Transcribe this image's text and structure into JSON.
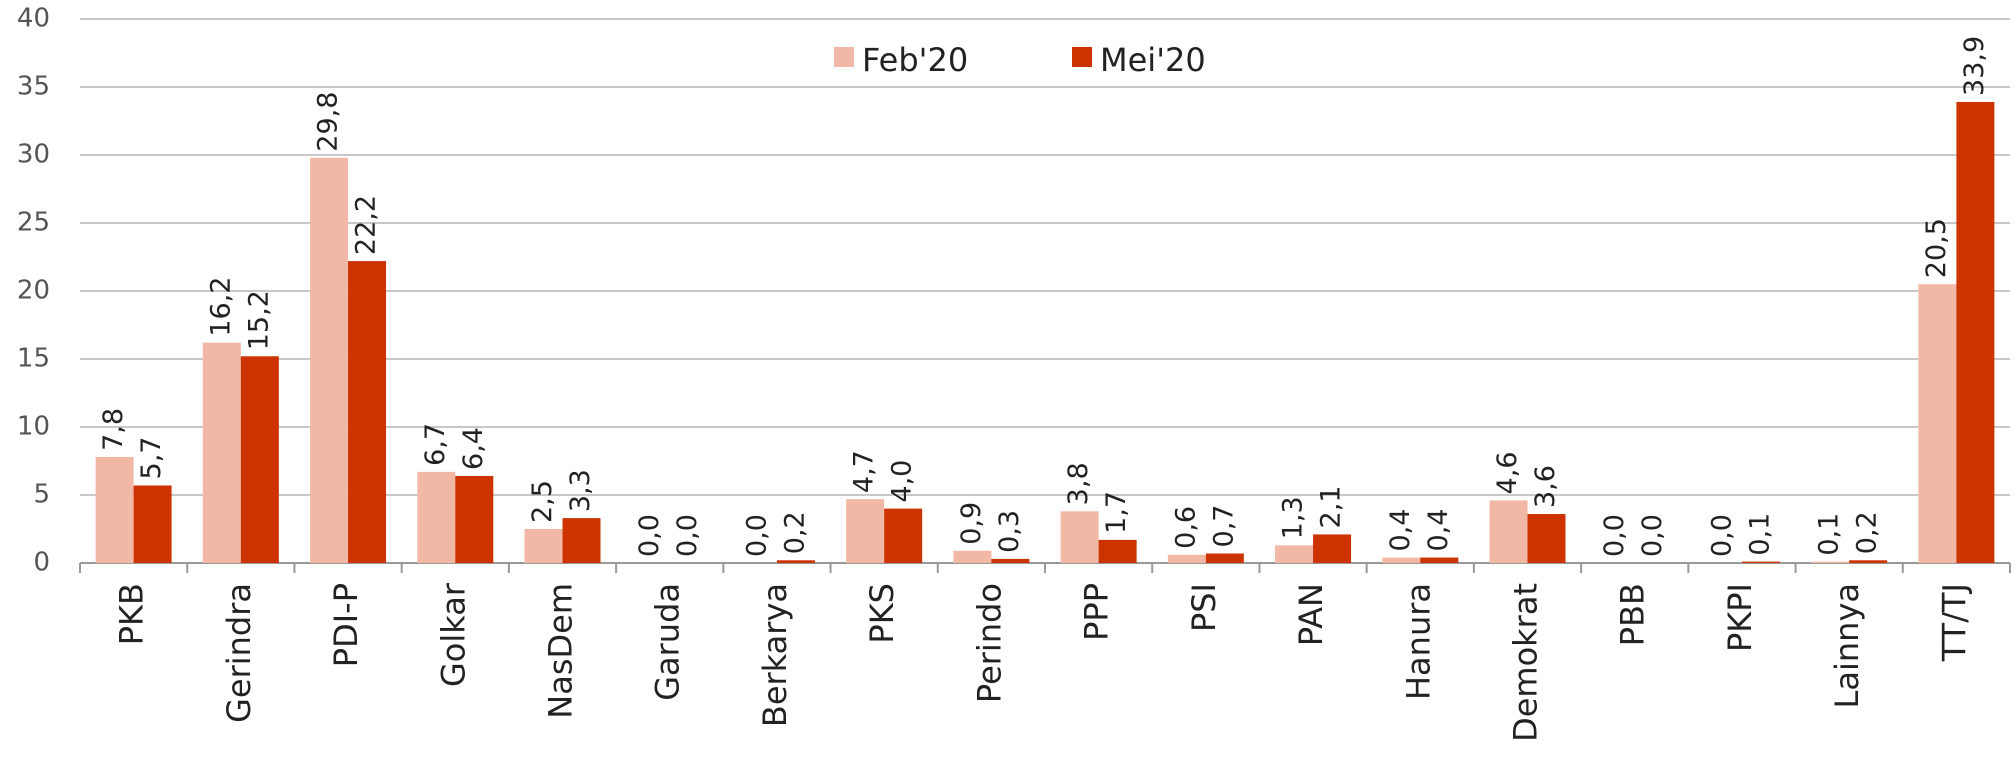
{
  "chart_data": {
    "type": "bar",
    "categories": [
      "PKB",
      "Gerindra",
      "PDI-P",
      "Golkar",
      "NasDem",
      "Garuda",
      "Berkarya",
      "PKS",
      "Perindo",
      "PPP",
      "PSI",
      "PAN",
      "Hanura",
      "Demokrat",
      "PBB",
      "PKPI",
      "Lainnya",
      "TT/TJ"
    ],
    "series": [
      {
        "name": "Feb'20",
        "color": "#f2b8a6",
        "values": [
          7.8,
          16.2,
          29.8,
          6.7,
          2.5,
          0.0,
          0.0,
          4.7,
          0.9,
          3.8,
          0.6,
          1.3,
          0.4,
          4.6,
          0.0,
          0.0,
          0.1,
          20.5
        ],
        "value_labels": [
          "7,8",
          "16,2",
          "29,8",
          "6,7",
          "2,5",
          "0,0",
          "0,0",
          "4,7",
          "0,9",
          "3,8",
          "0,6",
          "1,3",
          "0,4",
          "4,6",
          "0,0",
          "0,0",
          "0,1",
          "20,5"
        ]
      },
      {
        "name": "Mei'20",
        "color": "#cc3300",
        "values": [
          5.7,
          15.2,
          22.2,
          6.4,
          3.3,
          0.0,
          0.2,
          4.0,
          0.3,
          1.7,
          0.7,
          2.1,
          0.4,
          3.6,
          0.0,
          0.1,
          0.2,
          33.9
        ],
        "value_labels": [
          "5,7",
          "15,2",
          "22,2",
          "6,4",
          "3,3",
          "0,0",
          "0,2",
          "4,0",
          "0,3",
          "1,7",
          "0,7",
          "2,1",
          "0,4",
          "3,6",
          "0,0",
          "0,1",
          "0,2",
          "33,9"
        ]
      }
    ],
    "ylim": [
      0,
      40
    ],
    "yticks": [
      0,
      5,
      10,
      15,
      20,
      25,
      30,
      35,
      40
    ],
    "grid": true,
    "legend": "top"
  }
}
